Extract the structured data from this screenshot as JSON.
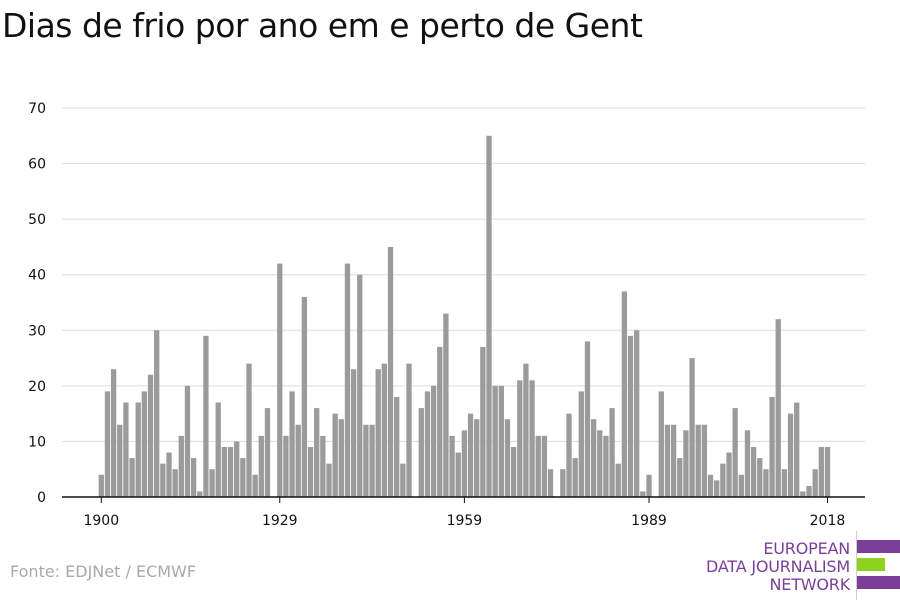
{
  "title": "Dias de frio por ano em e perto de Gent",
  "source": "Fonte: EDJNet / ECMWF",
  "logo": {
    "lines": [
      "EUROPEAN",
      "DATA JOURNALISM",
      "NETWORK"
    ],
    "colors": {
      "purple": "#7b3f99",
      "green": "#8fd11f"
    }
  },
  "colors": {
    "bar": "#9b9b9b",
    "grid": "#dcdcdc",
    "axis": "#111111"
  },
  "chart_data": {
    "type": "bar",
    "title": "Dias de frio por ano em e perto de Gent",
    "xlabel": "",
    "ylabel": "",
    "ylim": [
      0,
      70
    ],
    "yticks": [
      0,
      10,
      20,
      30,
      40,
      50,
      60,
      70
    ],
    "xticks": [
      1900,
      1929,
      1959,
      1989,
      2018
    ],
    "grid": true,
    "x": [
      1900,
      1901,
      1902,
      1903,
      1904,
      1905,
      1906,
      1907,
      1908,
      1909,
      1910,
      1911,
      1912,
      1913,
      1914,
      1915,
      1916,
      1917,
      1918,
      1919,
      1920,
      1921,
      1922,
      1923,
      1924,
      1925,
      1926,
      1927,
      1928,
      1929,
      1930,
      1931,
      1932,
      1933,
      1934,
      1935,
      1936,
      1937,
      1938,
      1939,
      1940,
      1941,
      1942,
      1943,
      1944,
      1945,
      1946,
      1947,
      1948,
      1949,
      1950,
      1951,
      1952,
      1953,
      1954,
      1955,
      1956,
      1957,
      1958,
      1959,
      1960,
      1961,
      1962,
      1963,
      1964,
      1965,
      1966,
      1967,
      1968,
      1969,
      1970,
      1971,
      1972,
      1973,
      1974,
      1975,
      1976,
      1977,
      1978,
      1979,
      1980,
      1981,
      1982,
      1983,
      1984,
      1985,
      1986,
      1987,
      1988,
      1989,
      1990,
      1991,
      1992,
      1993,
      1994,
      1995,
      1996,
      1997,
      1998,
      1999,
      2000,
      2001,
      2002,
      2003,
      2004,
      2005,
      2006,
      2007,
      2008,
      2009,
      2010,
      2011,
      2012,
      2013,
      2014,
      2015,
      2016,
      2017,
      2018
    ],
    "values": [
      4,
      19,
      23,
      13,
      17,
      7,
      17,
      19,
      22,
      30,
      6,
      8,
      5,
      11,
      20,
      7,
      1,
      29,
      5,
      17,
      9,
      9,
      10,
      7,
      24,
      4,
      11,
      16,
      0,
      42,
      11,
      19,
      13,
      36,
      9,
      16,
      11,
      6,
      15,
      14,
      42,
      23,
      40,
      13,
      13,
      23,
      24,
      45,
      18,
      6,
      24,
      0,
      16,
      19,
      20,
      27,
      33,
      11,
      8,
      12,
      15,
      14,
      27,
      65,
      20,
      20,
      14,
      9,
      21,
      24,
      21,
      11,
      11,
      5,
      0,
      5,
      15,
      7,
      19,
      28,
      14,
      12,
      11,
      16,
      6,
      37,
      29,
      30,
      1,
      4,
      0,
      19,
      13,
      13,
      7,
      12,
      25,
      13,
      13,
      4,
      3,
      6,
      8,
      16,
      4,
      12,
      9,
      7,
      5,
      18,
      32,
      5,
      15,
      17,
      1,
      2,
      5,
      9,
      9
    ]
  }
}
